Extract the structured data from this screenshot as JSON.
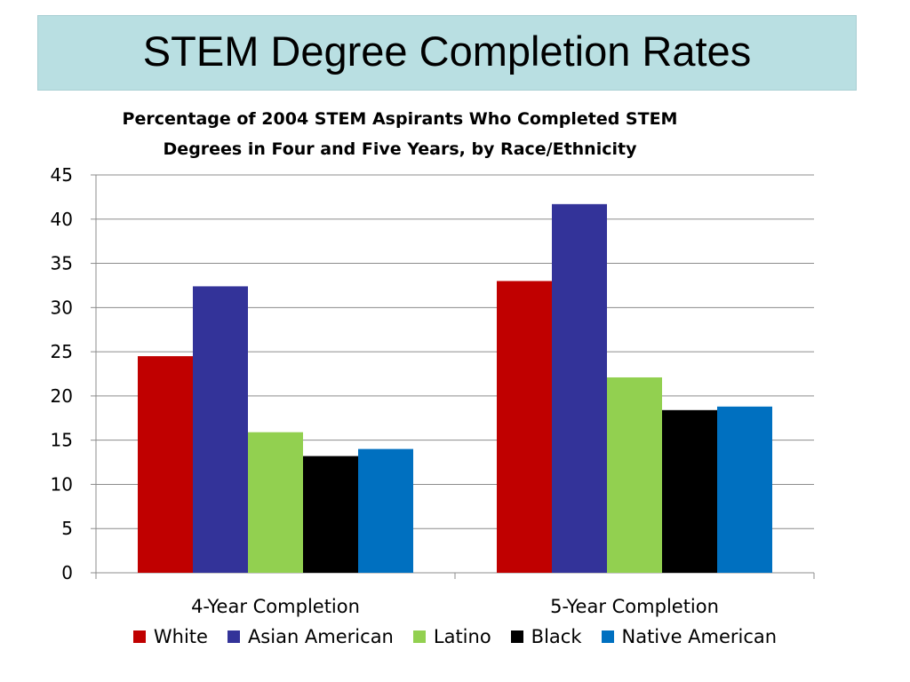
{
  "slide": {
    "title": "STEM Degree Completion Rates"
  },
  "chart_data": {
    "type": "bar",
    "title_lines": [
      "Percentage of 2004 STEM Aspirants Who Completed STEM",
      "Degrees in Four and Five Years, by Race/Ethnicity"
    ],
    "categories": [
      "4-Year Completion",
      "5-Year Completion"
    ],
    "series": [
      {
        "name": "White",
        "color": "#c00000",
        "values": [
          24.5,
          33.0
        ]
      },
      {
        "name": "Asian American",
        "color": "#333399",
        "values": [
          32.4,
          41.7
        ]
      },
      {
        "name": "Latino",
        "color": "#92d050",
        "values": [
          15.9,
          22.1
        ]
      },
      {
        "name": "Black",
        "color": "#000000",
        "values": [
          13.2,
          18.4
        ]
      },
      {
        "name": "Native American",
        "color": "#0070c0",
        "values": [
          14.0,
          18.8
        ]
      }
    ],
    "ylim": [
      0,
      45
    ],
    "yticks": [
      0,
      5,
      10,
      15,
      20,
      25,
      30,
      35,
      40,
      45
    ],
    "xlabel": "",
    "ylabel": "",
    "grid": true,
    "legend": "bottom"
  }
}
